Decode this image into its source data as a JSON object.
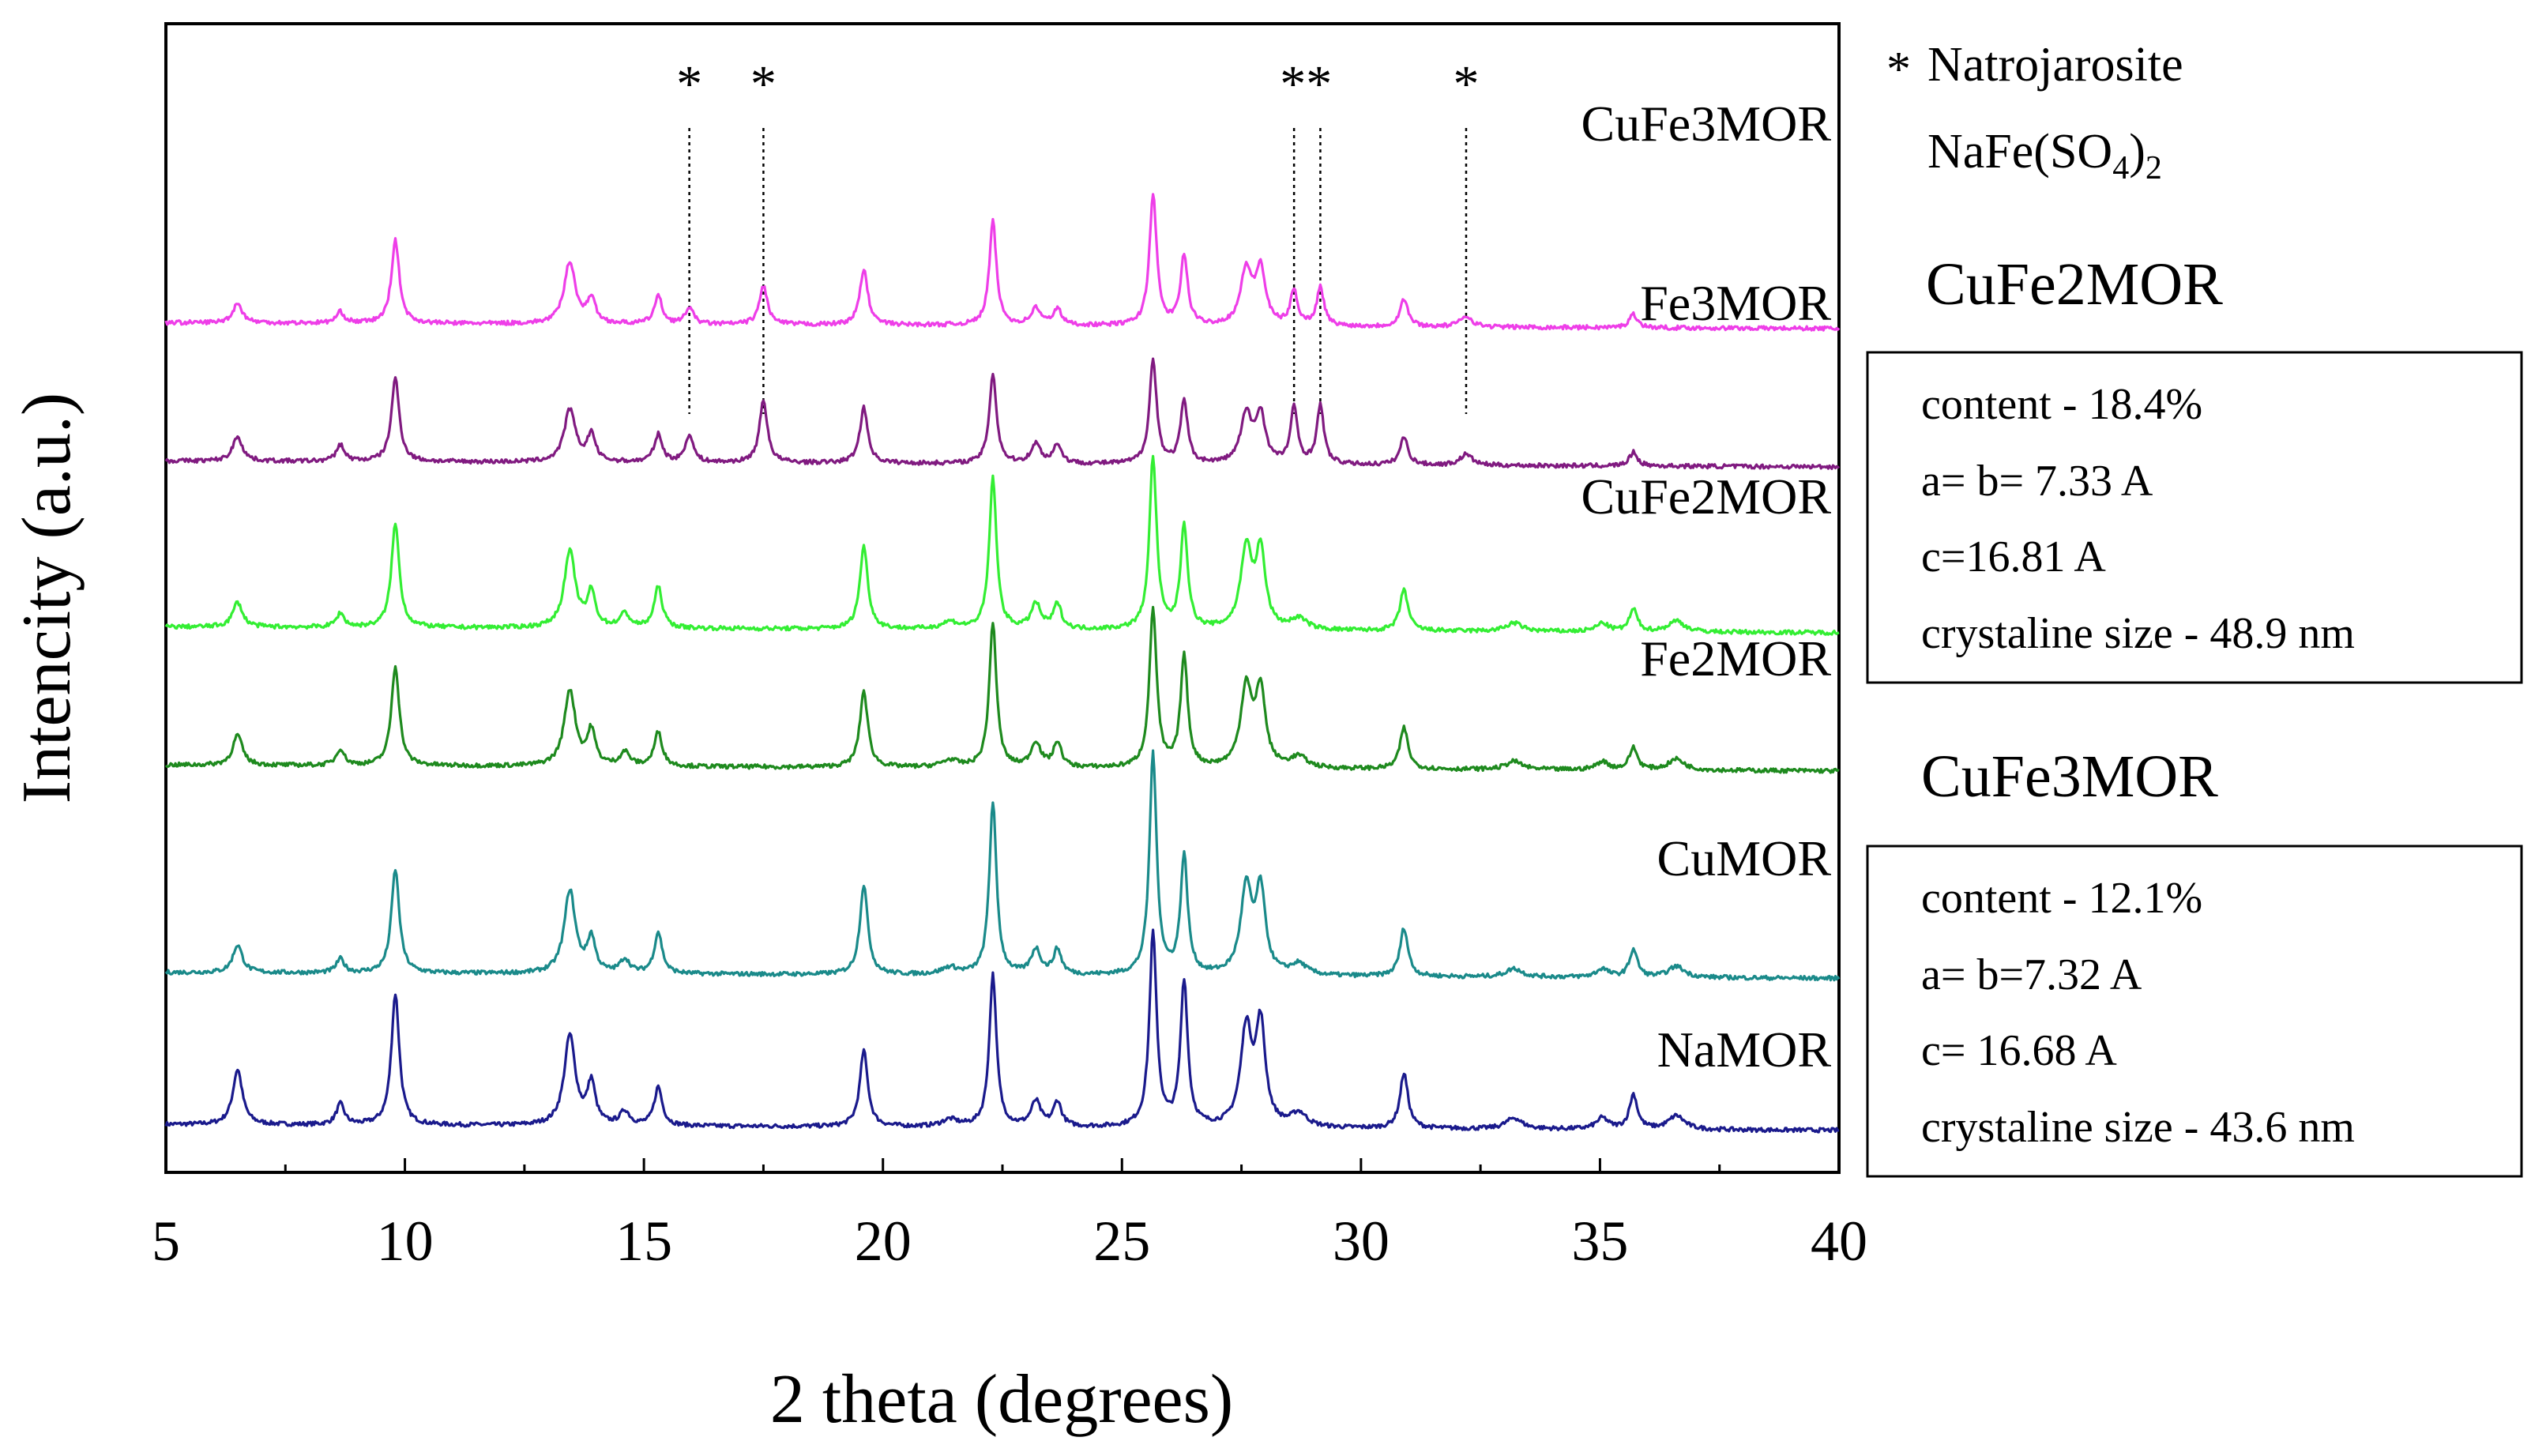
{
  "chart_data": {
    "type": "line",
    "title": "",
    "xlabel": "2 theta (degrees)",
    "ylabel": "Intencity (a.u.)",
    "xlim": [
      5,
      40
    ],
    "xticks": [
      5,
      10,
      15,
      20,
      25,
      30,
      35,
      40
    ],
    "yticks_shown": false,
    "legend_position": "inline right of each trace",
    "series": [
      {
        "name": "NaMOR",
        "color": "#1a1a8c",
        "offset": 0,
        "baseline": 14,
        "slope": -0.12,
        "peaks": [
          [
            6.5,
            40,
            0.12
          ],
          [
            8.65,
            15,
            0.1
          ],
          [
            9.8,
            95,
            0.1
          ],
          [
            13.45,
            65,
            0.14
          ],
          [
            13.9,
            30,
            0.1
          ],
          [
            14.6,
            10,
            0.12
          ],
          [
            15.3,
            28,
            0.1
          ],
          [
            19.6,
            55,
            0.1
          ],
          [
            21.4,
            5,
            0.2
          ],
          [
            22.3,
            110,
            0.09
          ],
          [
            23.2,
            18,
            0.12
          ],
          [
            23.65,
            18,
            0.1
          ],
          [
            25.65,
            140,
            0.09
          ],
          [
            26.3,
            105,
            0.09
          ],
          [
            27.6,
            70,
            0.14
          ],
          [
            27.9,
            72,
            0.12
          ],
          [
            28.7,
            10,
            0.2
          ],
          [
            30.9,
            40,
            0.1
          ],
          [
            33.2,
            8,
            0.2
          ],
          [
            35.05,
            8,
            0.15
          ],
          [
            35.7,
            25,
            0.1
          ],
          [
            36.6,
            10,
            0.2
          ]
        ]
      },
      {
        "name": "CuMOR",
        "color": "#1a8a8a",
        "offset": 110,
        "baseline": 14,
        "slope": -0.12,
        "peaks": [
          [
            6.5,
            20,
            0.12
          ],
          [
            8.65,
            10,
            0.1
          ],
          [
            9.8,
            75,
            0.1
          ],
          [
            13.45,
            60,
            0.14
          ],
          [
            13.9,
            25,
            0.1
          ],
          [
            14.6,
            10,
            0.12
          ],
          [
            15.3,
            30,
            0.1
          ],
          [
            19.6,
            65,
            0.1
          ],
          [
            21.4,
            5,
            0.2
          ],
          [
            22.3,
            125,
            0.09
          ],
          [
            23.2,
            18,
            0.12
          ],
          [
            23.65,
            18,
            0.1
          ],
          [
            25.65,
            160,
            0.09
          ],
          [
            26.3,
            85,
            0.09
          ],
          [
            27.6,
            62,
            0.14
          ],
          [
            27.9,
            60,
            0.12
          ],
          [
            28.7,
            8,
            0.2
          ],
          [
            30.9,
            35,
            0.1
          ],
          [
            33.2,
            6,
            0.2
          ],
          [
            35.05,
            6,
            0.15
          ],
          [
            35.7,
            20,
            0.1
          ],
          [
            36.6,
            8,
            0.2
          ]
        ]
      },
      {
        "name": "Fe2MOR",
        "color": "#1e8a1e",
        "offset": 260,
        "baseline": 14,
        "slope": -0.12,
        "peaks": [
          [
            6.5,
            22,
            0.12
          ],
          [
            8.65,
            12,
            0.1
          ],
          [
            9.8,
            72,
            0.1
          ],
          [
            13.45,
            55,
            0.14
          ],
          [
            13.9,
            25,
            0.1
          ],
          [
            14.6,
            10,
            0.12
          ],
          [
            15.3,
            25,
            0.1
          ],
          [
            19.6,
            55,
            0.1
          ],
          [
            21.4,
            5,
            0.2
          ],
          [
            22.3,
            105,
            0.09
          ],
          [
            23.2,
            18,
            0.12
          ],
          [
            23.65,
            18,
            0.1
          ],
          [
            25.65,
            115,
            0.09
          ],
          [
            26.3,
            80,
            0.09
          ],
          [
            27.6,
            58,
            0.14
          ],
          [
            27.9,
            55,
            0.12
          ],
          [
            28.7,
            8,
            0.2
          ],
          [
            30.9,
            30,
            0.1
          ],
          [
            33.2,
            6,
            0.2
          ],
          [
            35.05,
            6,
            0.15
          ],
          [
            35.7,
            16,
            0.1
          ],
          [
            36.6,
            8,
            0.2
          ]
        ]
      },
      {
        "name": "CuFe2MOR",
        "color": "#33ee33",
        "offset": 360,
        "baseline": 14,
        "slope": -0.12,
        "peaks": [
          [
            6.5,
            18,
            0.12
          ],
          [
            8.65,
            10,
            0.1
          ],
          [
            9.8,
            75,
            0.1
          ],
          [
            13.45,
            55,
            0.14
          ],
          [
            13.9,
            25,
            0.1
          ],
          [
            14.6,
            10,
            0.12
          ],
          [
            15.3,
            30,
            0.1
          ],
          [
            19.6,
            60,
            0.1
          ],
          [
            21.4,
            5,
            0.2
          ],
          [
            22.3,
            110,
            0.09
          ],
          [
            23.2,
            18,
            0.12
          ],
          [
            23.65,
            18,
            0.1
          ],
          [
            25.65,
            125,
            0.09
          ],
          [
            26.3,
            75,
            0.09
          ],
          [
            27.6,
            58,
            0.14
          ],
          [
            27.9,
            55,
            0.12
          ],
          [
            28.7,
            8,
            0.2
          ],
          [
            30.9,
            30,
            0.1
          ],
          [
            33.2,
            6,
            0.2
          ],
          [
            35.05,
            6,
            0.15
          ],
          [
            35.7,
            16,
            0.1
          ],
          [
            36.6,
            8,
            0.2
          ]
        ]
      },
      {
        "name": "Fe3MOR",
        "color": "#801a80",
        "offset": 480,
        "baseline": 14,
        "slope": -0.12,
        "peaks": [
          [
            6.5,
            18,
            0.12
          ],
          [
            8.65,
            12,
            0.1
          ],
          [
            9.8,
            60,
            0.1
          ],
          [
            13.45,
            38,
            0.14
          ],
          [
            13.9,
            20,
            0.1
          ],
          [
            15.3,
            20,
            0.1
          ],
          [
            15.95,
            20,
            0.1
          ],
          [
            17.5,
            45,
            0.1
          ],
          [
            19.6,
            40,
            0.1
          ],
          [
            22.3,
            65,
            0.09
          ],
          [
            23.2,
            14,
            0.12
          ],
          [
            23.65,
            14,
            0.1
          ],
          [
            25.65,
            75,
            0.09
          ],
          [
            26.3,
            45,
            0.09
          ],
          [
            27.6,
            35,
            0.14
          ],
          [
            27.9,
            35,
            0.12
          ],
          [
            28.6,
            40,
            0.09
          ],
          [
            29.15,
            42,
            0.09
          ],
          [
            30.9,
            20,
            0.1
          ],
          [
            32.2,
            8,
            0.15
          ],
          [
            35.7,
            10,
            0.1
          ]
        ]
      },
      {
        "name": "CuFe3MOR",
        "color": "#ee3ee8",
        "offset": 580,
        "baseline": 14,
        "slope": -0.12,
        "peaks": [
          [
            6.5,
            14,
            0.12
          ],
          [
            8.65,
            8,
            0.1
          ],
          [
            9.8,
            60,
            0.1
          ],
          [
            13.45,
            45,
            0.14
          ],
          [
            13.9,
            18,
            0.1
          ],
          [
            15.3,
            20,
            0.1
          ],
          [
            15.95,
            12,
            0.1
          ],
          [
            17.5,
            28,
            0.1
          ],
          [
            19.6,
            40,
            0.1
          ],
          [
            22.3,
            75,
            0.09
          ],
          [
            23.2,
            12,
            0.12
          ],
          [
            23.65,
            12,
            0.1
          ],
          [
            25.65,
            95,
            0.09
          ],
          [
            26.3,
            50,
            0.09
          ],
          [
            27.6,
            40,
            0.14
          ],
          [
            27.9,
            40,
            0.12
          ],
          [
            28.6,
            25,
            0.09
          ],
          [
            29.15,
            28,
            0.09
          ],
          [
            30.9,
            20,
            0.1
          ],
          [
            32.2,
            8,
            0.15
          ],
          [
            35.7,
            10,
            0.1
          ]
        ]
      }
    ],
    "annotations": [
      {
        "text": "*",
        "x": 15.95
      },
      {
        "text": "*",
        "x": 17.5
      },
      {
        "text": "**",
        "x": 28.85
      },
      {
        "text": "*",
        "x": 32.2
      }
    ],
    "marker_lines_x": [
      15.95,
      17.5,
      28.6,
      29.15,
      32.2
    ]
  },
  "legend_note": {
    "star": "*",
    "line1": "Natrojarosite",
    "formula_prefix": "NaFe(SO",
    "formula_sub1": "4",
    "formula_close": ")",
    "formula_sub2": "2"
  },
  "info_boxes": [
    {
      "title": "CuFe2MOR",
      "lines": [
        "content - 18.4%",
        "a= b= 7.33 A",
        "c=16.81 A",
        "crystaline size - 48.9 nm"
      ]
    },
    {
      "title": "CuFe3MOR",
      "lines": [
        "content - 12.1%",
        "a= b=7.32 A",
        "c= 16.68 A",
        "crystaline size - 43.6 nm"
      ]
    }
  ]
}
